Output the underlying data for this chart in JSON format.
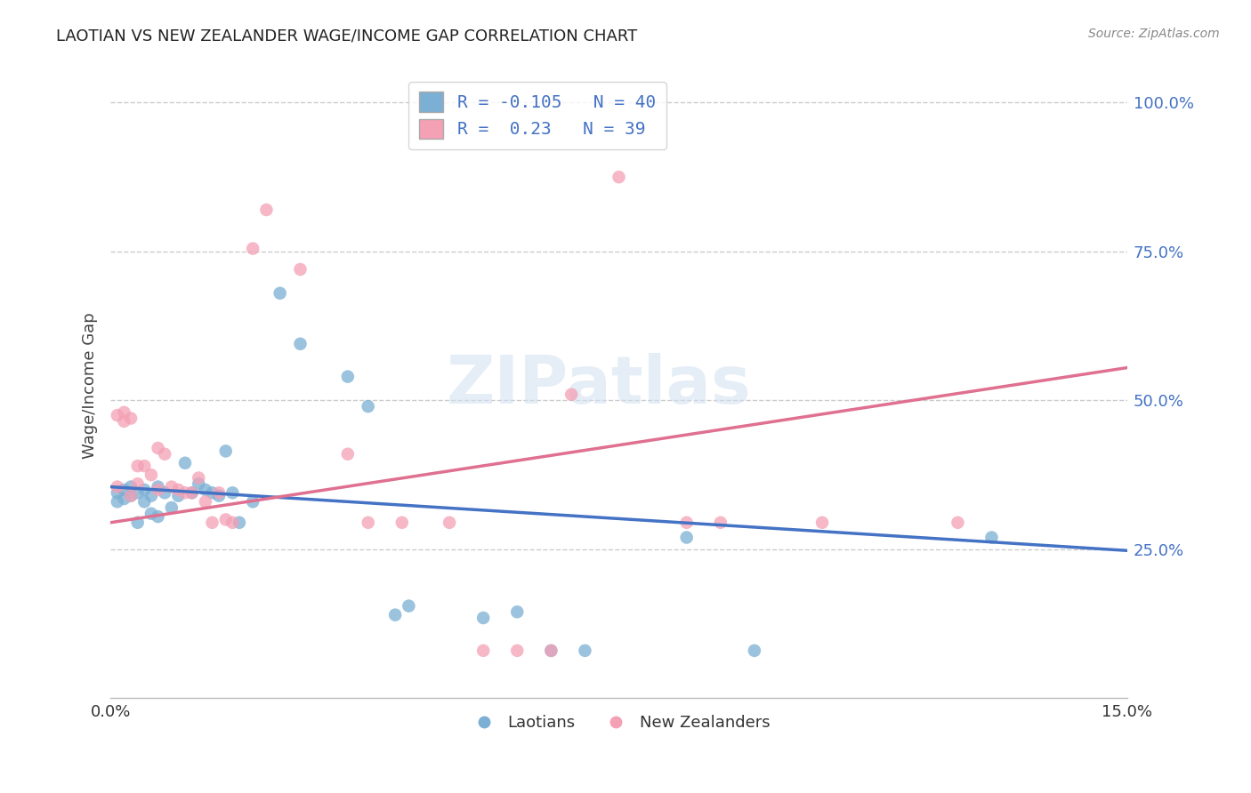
{
  "title": "LAOTIAN VS NEW ZEALANDER WAGE/INCOME GAP CORRELATION CHART",
  "source": "Source: ZipAtlas.com",
  "ylabel": "Wage/Income Gap",
  "xlim": [
    0.0,
    0.15
  ],
  "ylim": [
    0.0,
    1.05
  ],
  "ytick_values": [
    0.25,
    0.5,
    0.75,
    1.0
  ],
  "ytick_labels": [
    "25.0%",
    "50.0%",
    "75.0%",
    "100.0%"
  ],
  "grid_color": "#cccccc",
  "background_color": "#ffffff",
  "laotian_color": "#7bafd4",
  "nz_color": "#f4a0b5",
  "laotian_R": -0.105,
  "laotian_N": 40,
  "nz_R": 0.23,
  "nz_N": 39,
  "laotian_line_color": "#4472c4",
  "nz_line_color": "#e07090",
  "laotian_line_y0": 0.355,
  "laotian_line_y1": 0.248,
  "nz_line_y0": 0.295,
  "nz_line_y1": 0.555,
  "watermark_text": "ZIPatlas",
  "laotian_dots": [
    [
      0.001,
      0.345
    ],
    [
      0.001,
      0.33
    ],
    [
      0.002,
      0.35
    ],
    [
      0.002,
      0.335
    ],
    [
      0.003,
      0.355
    ],
    [
      0.003,
      0.34
    ],
    [
      0.004,
      0.345
    ],
    [
      0.004,
      0.295
    ],
    [
      0.005,
      0.35
    ],
    [
      0.005,
      0.33
    ],
    [
      0.006,
      0.34
    ],
    [
      0.006,
      0.31
    ],
    [
      0.007,
      0.355
    ],
    [
      0.007,
      0.305
    ],
    [
      0.008,
      0.345
    ],
    [
      0.009,
      0.32
    ],
    [
      0.01,
      0.34
    ],
    [
      0.011,
      0.395
    ],
    [
      0.012,
      0.345
    ],
    [
      0.013,
      0.36
    ],
    [
      0.014,
      0.35
    ],
    [
      0.015,
      0.345
    ],
    [
      0.016,
      0.34
    ],
    [
      0.017,
      0.415
    ],
    [
      0.018,
      0.345
    ],
    [
      0.019,
      0.295
    ],
    [
      0.021,
      0.33
    ],
    [
      0.025,
      0.68
    ],
    [
      0.028,
      0.595
    ],
    [
      0.035,
      0.54
    ],
    [
      0.038,
      0.49
    ],
    [
      0.042,
      0.14
    ],
    [
      0.044,
      0.155
    ],
    [
      0.055,
      0.135
    ],
    [
      0.06,
      0.145
    ],
    [
      0.065,
      0.08
    ],
    [
      0.07,
      0.08
    ],
    [
      0.085,
      0.27
    ],
    [
      0.095,
      0.08
    ],
    [
      0.13,
      0.27
    ]
  ],
  "nz_dots": [
    [
      0.001,
      0.355
    ],
    [
      0.001,
      0.475
    ],
    [
      0.002,
      0.48
    ],
    [
      0.002,
      0.465
    ],
    [
      0.003,
      0.47
    ],
    [
      0.003,
      0.34
    ],
    [
      0.004,
      0.39
    ],
    [
      0.004,
      0.36
    ],
    [
      0.005,
      0.39
    ],
    [
      0.006,
      0.375
    ],
    [
      0.007,
      0.42
    ],
    [
      0.007,
      0.35
    ],
    [
      0.008,
      0.41
    ],
    [
      0.009,
      0.355
    ],
    [
      0.01,
      0.35
    ],
    [
      0.011,
      0.345
    ],
    [
      0.012,
      0.345
    ],
    [
      0.013,
      0.37
    ],
    [
      0.014,
      0.33
    ],
    [
      0.015,
      0.295
    ],
    [
      0.016,
      0.345
    ],
    [
      0.017,
      0.3
    ],
    [
      0.018,
      0.295
    ],
    [
      0.021,
      0.755
    ],
    [
      0.023,
      0.82
    ],
    [
      0.028,
      0.72
    ],
    [
      0.035,
      0.41
    ],
    [
      0.038,
      0.295
    ],
    [
      0.043,
      0.295
    ],
    [
      0.05,
      0.295
    ],
    [
      0.055,
      0.08
    ],
    [
      0.06,
      0.08
    ],
    [
      0.065,
      0.08
    ],
    [
      0.068,
      0.51
    ],
    [
      0.075,
      0.875
    ],
    [
      0.085,
      0.295
    ],
    [
      0.09,
      0.295
    ],
    [
      0.105,
      0.295
    ],
    [
      0.125,
      0.295
    ]
  ]
}
